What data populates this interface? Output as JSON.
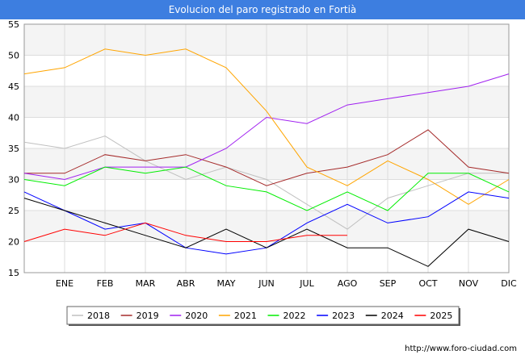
{
  "header": {
    "title": "Evolucion del paro registrado en Fortià"
  },
  "footer": {
    "url": "http://www.foro-ciudad.com"
  },
  "chart_data": {
    "type": "line",
    "title": "Evolucion del paro registrado en Fortià",
    "categories": [
      "",
      "ENE",
      "FEB",
      "MAR",
      "ABR",
      "MAY",
      "JUN",
      "JUL",
      "AGO",
      "SEP",
      "OCT",
      "NOV",
      "DIC"
    ],
    "ylim": [
      15,
      55
    ],
    "yticks": [
      15,
      20,
      25,
      30,
      35,
      40,
      45,
      50,
      55
    ],
    "grid": true,
    "legend_position": "bottom",
    "series": [
      {
        "name": "2018",
        "color": "#c0c0c0",
        "values": [
          36,
          35,
          37,
          33,
          30,
          32,
          30,
          26,
          22,
          27,
          29,
          31,
          31
        ]
      },
      {
        "name": "2019",
        "color": "#a52a2a",
        "values": [
          31,
          31,
          34,
          33,
          34,
          32,
          29,
          31,
          32,
          34,
          38,
          32,
          31
        ]
      },
      {
        "name": "2020",
        "color": "#a020f0",
        "values": [
          31,
          30,
          32,
          32,
          32,
          35,
          40,
          39,
          42,
          43,
          44,
          45,
          47
        ]
      },
      {
        "name": "2021",
        "color": "#ffa500",
        "values": [
          47,
          48,
          51,
          50,
          51,
          48,
          41,
          32,
          29,
          33,
          30,
          26,
          30
        ]
      },
      {
        "name": "2022",
        "color": "#00ee00",
        "values": [
          30,
          29,
          32,
          31,
          32,
          29,
          28,
          25,
          28,
          25,
          31,
          31,
          28
        ]
      },
      {
        "name": "2023",
        "color": "#0000ff",
        "values": [
          28,
          25,
          22,
          23,
          19,
          18,
          19,
          23,
          26,
          23,
          24,
          28,
          27
        ]
      },
      {
        "name": "2024",
        "color": "#000000",
        "values": [
          27,
          25,
          23,
          21,
          19,
          22,
          19,
          22,
          19,
          19,
          16,
          22,
          20
        ]
      },
      {
        "name": "2025",
        "color": "#ff0000",
        "values": [
          20,
          22,
          21,
          23,
          21,
          20,
          20,
          21,
          21,
          null,
          null,
          null,
          null
        ]
      }
    ]
  }
}
